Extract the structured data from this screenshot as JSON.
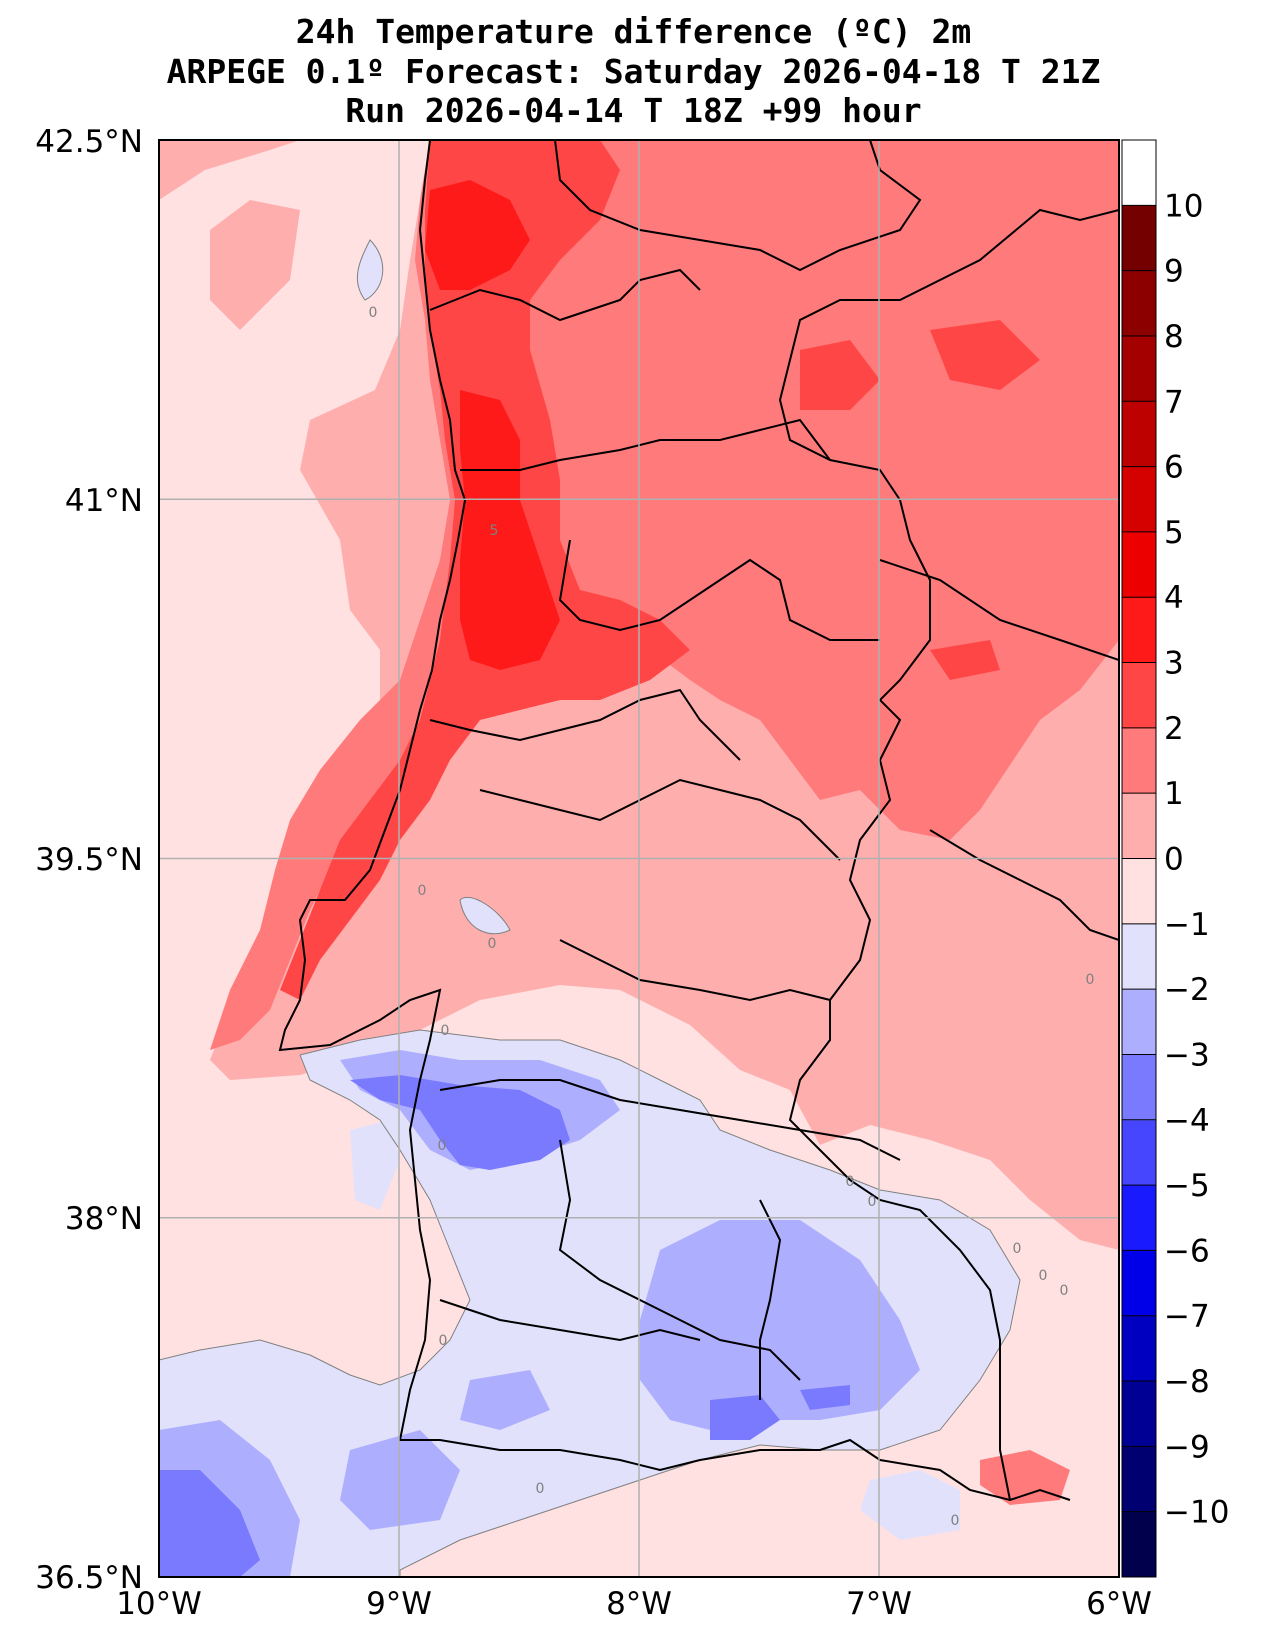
{
  "title": {
    "line1": "24h Temperature difference (ºC) 2m",
    "line2": "ARPEGE 0.1º Forecast: Saturday 2026-04-18 T 21Z",
    "line3": "Run 2026-04-14 T 18Z +99 hour"
  },
  "map": {
    "lon_range": [
      -10,
      -6
    ],
    "lat_range": [
      36.5,
      42.5
    ],
    "lat_ticks": [
      {
        "value": 42.5,
        "label": "42.5°N"
      },
      {
        "value": 41,
        "label": "41°N"
      },
      {
        "value": 39.5,
        "label": "39.5°N"
      },
      {
        "value": 38,
        "label": "38°N"
      },
      {
        "value": 36.5,
        "label": "36.5°N"
      }
    ],
    "lon_ticks": [
      {
        "value": -10,
        "label": "10°W"
      },
      {
        "value": -9,
        "label": "9°W"
      },
      {
        "value": -8,
        "label": "8°W"
      },
      {
        "value": -7,
        "label": "7°W"
      },
      {
        "value": -6,
        "label": "6°W"
      }
    ],
    "contour_labels": [
      "0",
      "0",
      "0",
      "0",
      "0",
      "0",
      "0",
      "0",
      "0",
      "0",
      "0",
      "0",
      "0",
      "0",
      "5"
    ]
  },
  "colorbar": {
    "levels": [
      -11,
      -10,
      -9,
      -8,
      -7,
      -6,
      -5,
      -4,
      -3,
      -2,
      -1,
      0,
      1,
      2,
      3,
      4,
      5,
      6,
      7,
      8,
      9,
      10,
      11
    ],
    "colors": [
      "#00004d",
      "#000070",
      "#000095",
      "#0000c0",
      "#0000e8",
      "#1a1aff",
      "#4646ff",
      "#7a7aff",
      "#aeaeff",
      "#e1e1fb",
      "#ffe1e1",
      "#ffaeae",
      "#ff7a7a",
      "#ff4646",
      "#ff1a1a",
      "#ed0000",
      "#d50000",
      "#bd0000",
      "#a50000",
      "#8c0000",
      "#740000"
    ],
    "tick_labels": [
      "10",
      "9",
      "8",
      "7",
      "6",
      "5",
      "4",
      "3",
      "2",
      "1",
      "0",
      "−1",
      "−2",
      "−3",
      "−4",
      "−5",
      "−6",
      "−7",
      "−8",
      "−9",
      "−10"
    ]
  },
  "colors": {
    "grid": "#b0b0b0",
    "coast": "#000000",
    "zero_contour": "#808080"
  }
}
